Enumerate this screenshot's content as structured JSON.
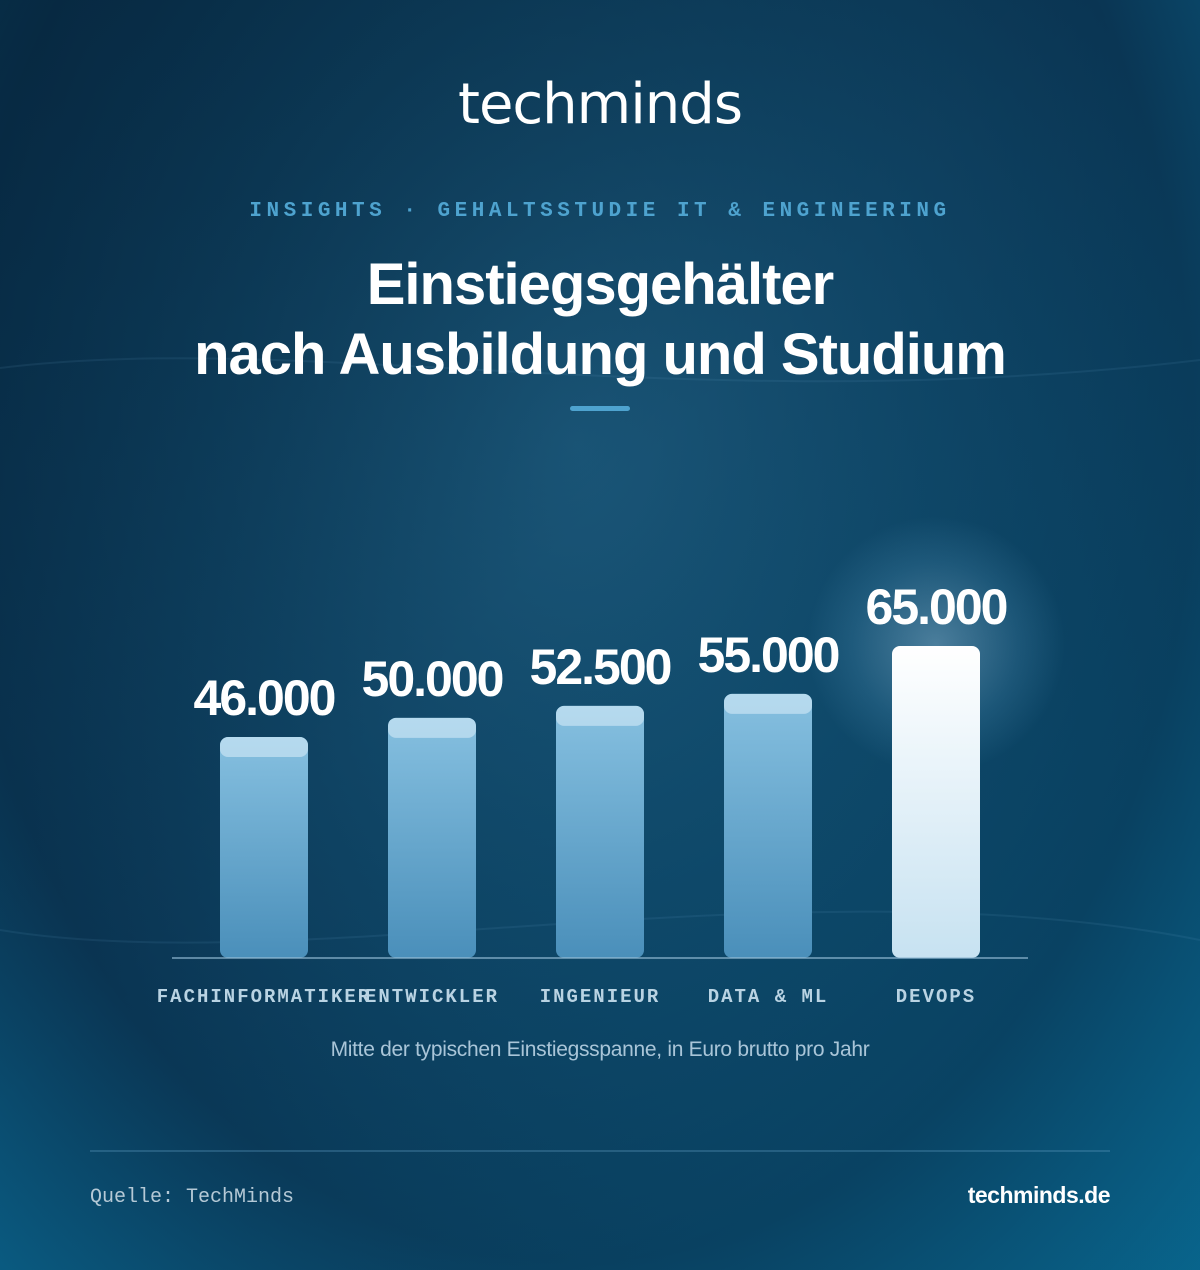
{
  "brand": {
    "logo_text": "techminds"
  },
  "header": {
    "kicker": "INSIGHTS · GEHALTSSTUDIE IT & ENGINEERING",
    "title_line1": "Einstiegsgehälter",
    "title_line2": "nach Ausbildung und Studium"
  },
  "chart_data": {
    "type": "bar",
    "categories": [
      "FACHINFORMATIKER",
      "ENTWICKLER",
      "INGENIEUR",
      "DATA & ML",
      "DEVOPS"
    ],
    "values": [
      46000,
      50000,
      52500,
      55000,
      65000
    ],
    "value_labels": [
      "46.000",
      "50.000",
      "52.500",
      "55.000",
      "65.000"
    ],
    "highlight_index": 4,
    "title": "Einstiegsgehälter nach Ausbildung und Studium",
    "xlabel": "",
    "ylabel": "",
    "subtitle": "Mitte der typischen Einstiegsspanne, in Euro brutto pro Jahr",
    "grid": false,
    "legend": "none",
    "colors": {
      "bar": "#6fb0d6",
      "bar_highlight": "#ffffff",
      "kicker": "#4ea3cf"
    }
  },
  "footer": {
    "source": "Quelle: TechMinds",
    "website": "techminds.de"
  }
}
